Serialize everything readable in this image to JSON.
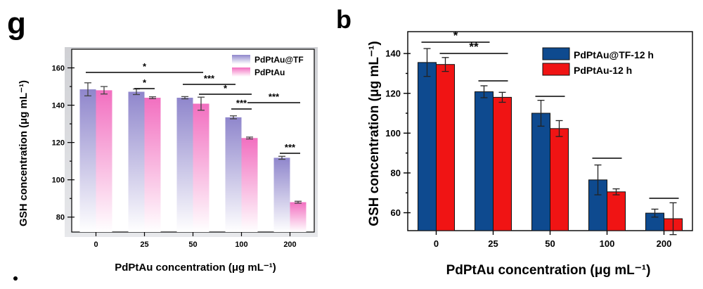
{
  "chart_data": [
    {
      "panel": "g",
      "type": "bar",
      "title": "",
      "xlabel": "PdPtAu concentration (μg mL⁻¹)",
      "ylabel": "GSH concentration (μg mL⁻¹)",
      "categories": [
        "0",
        "25",
        "50",
        "100",
        "200"
      ],
      "ylim": [
        72,
        170
      ],
      "yticks": [
        80,
        100,
        120,
        140,
        160
      ],
      "series": [
        {
          "name": "PdPtAu@TF",
          "values": [
            148.5,
            147.2,
            144.0,
            133.5,
            111.8
          ],
          "errors": [
            3.5,
            1.5,
            0.6,
            0.8,
            0.8
          ]
        },
        {
          "name": "PdPtAu",
          "values": [
            148.0,
            144.0,
            140.8,
            122.4,
            88.0
          ],
          "errors": [
            2.0,
            0.5,
            3.5,
            0.5,
            0.5
          ]
        }
      ],
      "significance": [
        {
          "label": "*",
          "from": [
            0,
            0
          ],
          "to": [
            2,
            1
          ]
        },
        {
          "label": "*",
          "from": [
            1,
            0
          ],
          "to": [
            1,
            1
          ]
        },
        {
          "label": "***",
          "from": [
            2,
            0
          ],
          "to": [
            3,
            0
          ]
        },
        {
          "label": "*",
          "from": [
            2,
            1
          ],
          "to": [
            3,
            1
          ]
        },
        {
          "label": "***",
          "from": [
            3,
            0
          ],
          "to": [
            3,
            1
          ]
        },
        {
          "label": "***",
          "from": [
            3,
            1
          ],
          "to": [
            4,
            1
          ]
        },
        {
          "label": "***",
          "from": [
            4,
            0
          ],
          "to": [
            4,
            1
          ]
        }
      ],
      "colors": {
        "series0_top": "#8f86cc",
        "series0_bottom": "#ffffff",
        "series1_top": "#f26fc0",
        "series1_bottom": "#ffffff"
      },
      "legend": "top-right",
      "grid": false
    },
    {
      "panel": "b",
      "type": "bar",
      "title": "",
      "xlabel": "PdPtAu concentration (μg mL⁻¹)",
      "ylabel": "GSH concentration (μg mL⁻¹)",
      "categories": [
        "0",
        "25",
        "50",
        "100",
        "200"
      ],
      "ylim": [
        51,
        151
      ],
      "yticks": [
        60,
        80,
        100,
        120,
        140
      ],
      "series": [
        {
          "name": "PdPtAu@TF-12 h",
          "values": [
            135.5,
            120.8,
            110.0,
            76.5,
            59.8
          ],
          "errors": [
            7.0,
            3.0,
            6.5,
            7.5,
            2.0
          ]
        },
        {
          "name": "PdPtAu-12 h",
          "values": [
            134.5,
            118.0,
            102.3,
            70.5,
            57.0
          ],
          "errors": [
            3.5,
            2.5,
            4.0,
            1.5,
            8.0
          ]
        }
      ],
      "significance": [
        {
          "label": "*",
          "from": [
            0,
            0
          ],
          "to": [
            1,
            0
          ]
        },
        {
          "label": "**",
          "from": [
            0,
            1
          ],
          "to": [
            1,
            1
          ]
        },
        {
          "label": "",
          "from": [
            1,
            0
          ],
          "to": [
            1,
            1
          ]
        },
        {
          "label": "",
          "from": [
            2,
            0
          ],
          "to": [
            2,
            1
          ]
        },
        {
          "label": "",
          "from": [
            3,
            0
          ],
          "to": [
            3,
            1
          ]
        },
        {
          "label": "",
          "from": [
            4,
            0
          ],
          "to": [
            4,
            1
          ]
        }
      ],
      "colors": {
        "series0": "#0e4a8f",
        "series1": "#f01414"
      },
      "legend": "top-right",
      "grid": false
    }
  ]
}
